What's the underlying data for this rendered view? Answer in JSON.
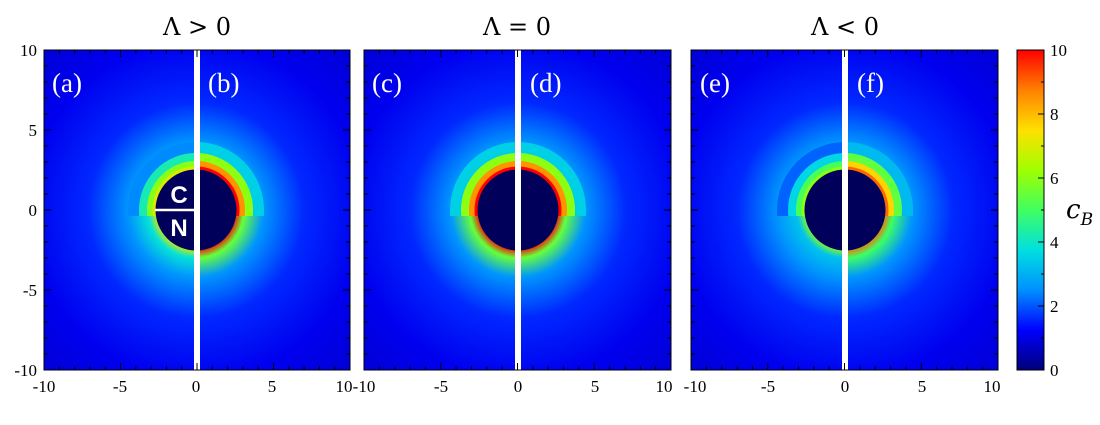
{
  "chart_data": [
    {
      "type": "heatmap",
      "title": "Λ > 0",
      "xlim": [
        -10,
        10
      ],
      "ylim": [
        -10,
        10
      ],
      "x_ticks": [
        "-10",
        "-5",
        "0",
        "5",
        "10"
      ],
      "y_ticks": [
        "10",
        "5",
        "0",
        "-5",
        "-10"
      ],
      "panels": [
        {
          "label": "(a)",
          "side": "left",
          "inner_label_top": "C",
          "inner_label_bottom": "N",
          "disk_radius": 2.5,
          "ring_peak": 7
        },
        {
          "label": "(b)",
          "side": "right",
          "disk_radius": 2.5,
          "ring_peak": 10
        }
      ]
    },
    {
      "type": "heatmap",
      "title": "Λ = 0",
      "xlim": [
        -10,
        10
      ],
      "ylim": [
        -10,
        10
      ],
      "x_ticks": [
        "-10",
        "-5",
        "0",
        "5",
        "10"
      ],
      "y_ticks": [
        "10",
        "5",
        "0",
        "-5",
        "-10"
      ],
      "panels": [
        {
          "label": "(c)",
          "side": "left",
          "disk_radius": 2.5,
          "ring_peak": 10
        },
        {
          "label": "(d)",
          "side": "right",
          "disk_radius": 2.5,
          "ring_peak": 10
        }
      ]
    },
    {
      "type": "heatmap",
      "title": "Λ < 0",
      "xlim": [
        -10,
        10
      ],
      "ylim": [
        -10,
        10
      ],
      "x_ticks": [
        "-10",
        "-5",
        "0",
        "5",
        "10"
      ],
      "y_ticks": [
        "10",
        "5",
        "0",
        "-5",
        "-10"
      ],
      "panels": [
        {
          "label": "(e)",
          "side": "left",
          "disk_radius": 2.5,
          "ring_peak": 6
        },
        {
          "label": "(f)",
          "side": "right",
          "disk_radius": 2.5,
          "ring_peak": 9
        }
      ]
    }
  ],
  "colorbar": {
    "label_main": "c",
    "label_sub": "B",
    "range": [
      0,
      10
    ],
    "ticks": [
      "10",
      "8",
      "6",
      "4",
      "2",
      "0"
    ],
    "colors": [
      "#00007a",
      "#0000ff",
      "#0090ff",
      "#00e0e0",
      "#40ff60",
      "#a0ff00",
      "#ffe000",
      "#ff8000",
      "#ff0000"
    ]
  }
}
